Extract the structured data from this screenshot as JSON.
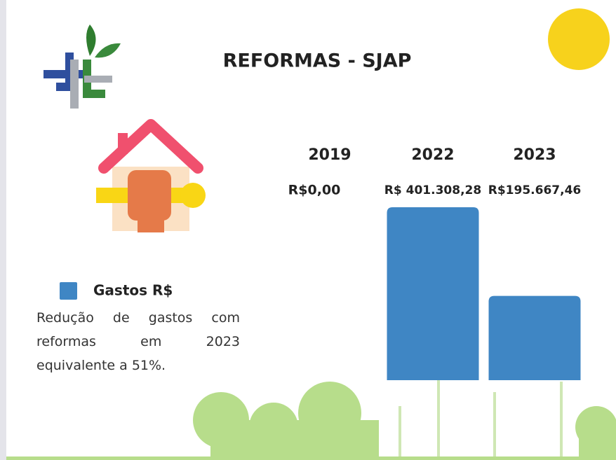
{
  "chart_data": {
    "type": "bar",
    "title": "REFORMAS - SJAP",
    "categories": [
      "2019",
      "2022",
      "2023"
    ],
    "series": [
      {
        "name": "Gastos R$",
        "color": "#3f86c4",
        "values": [
          0,
          401308.28,
          195667.46
        ],
        "value_labels": [
          "R$0,00",
          "R$ 401.308,28",
          "R$195.667,46"
        ]
      }
    ],
    "annotation": "Redução de gastos com reformas em 2023 equivalente a 51%."
  }
}
